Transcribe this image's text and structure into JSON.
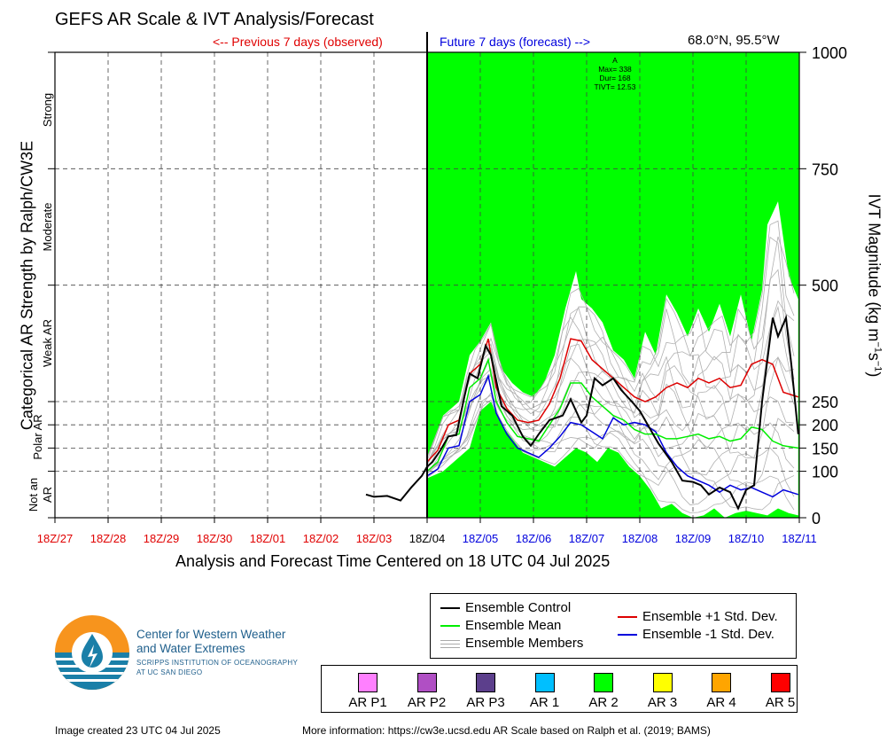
{
  "title": "GEFS AR Scale & IVT Analysis/Forecast",
  "prev_label": "<-- Previous 7 days (observed)",
  "future_label": "Future 7 days (forecast) -->",
  "location": "68.0°N, 95.5°W",
  "xlabel": "Analysis and Forecast Time Centered on 18 UTC 04 Jul 2025",
  "left_ylabel": "Categorical AR Strength by Ralph/CW3E",
  "right_ylabel": "IVT Magnitude (kg m",
  "categories": {
    "strong": "Strong",
    "moderate": "Moderate",
    "weak": "Weak AR",
    "polar": "Polar AR",
    "not_an": "Not an",
    "not_ar": "AR"
  },
  "annotation": {
    "a": "A",
    "max": "Max= 338",
    "dur": "Dur= 168",
    "tivt": "TIVT= 12.53"
  },
  "legend": {
    "control": "Ensemble Control",
    "mean": "Ensemble Mean",
    "members": "Ensemble Members",
    "plus": "Ensemble +1 Std. Dev.",
    "minus": "Ensemble -1 Std. Dev."
  },
  "ar_scale": [
    {
      "label": "AR P1",
      "color": "#ff80ff"
    },
    {
      "label": "AR P2",
      "color": "#b04fc4"
    },
    {
      "label": "AR P3",
      "color": "#5c3f8c"
    },
    {
      "label": "AR 1",
      "color": "#00bfff"
    },
    {
      "label": "AR 2",
      "color": "#00ff00"
    },
    {
      "label": "AR 3",
      "color": "#ffff00"
    },
    {
      "label": "AR 4",
      "color": "#ffa500"
    },
    {
      "label": "AR 5",
      "color": "#ff0000"
    }
  ],
  "logo": {
    "line1": "Center for Western Weather",
    "line2": "and Water Extremes",
    "line3": "SCRIPPS INSTITUTION OF OCEANOGRAPHY",
    "line4": "AT UC SAN DIEGO"
  },
  "footer_left": "Image created 23 UTC 04 Jul 2025",
  "footer_right": "More information: https://cw3e.ucsd.edu AR Scale based on Ralph et al. (2019; BAMS)",
  "colors": {
    "ar2_fill": "#00ff00",
    "control": "#000000",
    "mean": "#00ee00",
    "plus_std": "#dd0000",
    "minus_std": "#0000dd",
    "members": "#b0b0b0",
    "observed_tick": "#e00000",
    "forecast_tick": "#0000dd"
  },
  "chart_data": {
    "type": "line",
    "x_ticks": [
      "18Z/27",
      "18Z/28",
      "18Z/29",
      "18Z/30",
      "18Z/01",
      "18Z/02",
      "18Z/03",
      "18Z/04",
      "18Z/05",
      "18Z/06",
      "18Z/07",
      "18Z/08",
      "18Z/09",
      "18Z/10",
      "18Z/11"
    ],
    "x_range_days": [
      -7,
      7
    ],
    "y_ticks": [
      0,
      100,
      150,
      200,
      250,
      500,
      750,
      1000
    ],
    "ylim": [
      0,
      1000
    ],
    "ar_category_fill": {
      "from_day": 0,
      "to_day": 7,
      "category": "AR 2"
    },
    "series": [
      {
        "name": "Ensemble Control",
        "x": [
          -1.15,
          -1.0,
          -0.75,
          -0.5,
          -0.3,
          -0.1,
          0,
          0.1,
          0.25,
          0.4,
          0.55,
          0.7,
          0.8,
          0.95,
          1.1,
          1.2,
          1.4,
          1.6,
          1.8,
          1.95,
          2.1,
          2.3,
          2.55,
          2.7,
          2.9,
          3.0,
          3.15,
          3.3,
          3.5,
          3.65,
          3.85,
          4.0,
          4.15,
          4.35,
          4.6,
          4.8,
          5.0,
          5.15,
          5.3,
          5.5,
          5.7,
          5.85,
          6.0,
          6.15,
          6.3,
          6.5,
          6.6,
          6.75,
          6.85,
          6.98
        ],
        "values": [
          50,
          45,
          47,
          37,
          65,
          90,
          110,
          120,
          145,
          175,
          178,
          260,
          310,
          300,
          370,
          350,
          240,
          220,
          175,
          155,
          180,
          210,
          220,
          255,
          205,
          220,
          300,
          285,
          300,
          275,
          250,
          230,
          200,
          160,
          120,
          80,
          77,
          70,
          50,
          65,
          55,
          20,
          60,
          70,
          250,
          430,
          390,
          430,
          330,
          180
        ]
      },
      {
        "name": "Ensemble Mean",
        "x": [
          0,
          0.2,
          0.4,
          0.6,
          0.8,
          1.0,
          1.15,
          1.3,
          1.5,
          1.7,
          1.9,
          2.1,
          2.3,
          2.5,
          2.7,
          2.9,
          3.1,
          3.3,
          3.5,
          3.7,
          3.9,
          4.1,
          4.3,
          4.5,
          4.7,
          4.9,
          5.1,
          5.3,
          5.5,
          5.7,
          5.9,
          6.1,
          6.3,
          6.5,
          6.7,
          6.98
        ],
        "values": [
          100,
          120,
          175,
          180,
          280,
          300,
          340,
          250,
          205,
          175,
          170,
          165,
          200,
          235,
          290,
          290,
          260,
          240,
          220,
          210,
          190,
          180,
          180,
          170,
          170,
          175,
          180,
          170,
          175,
          165,
          170,
          195,
          190,
          165,
          155,
          150
        ]
      },
      {
        "name": "Ensemble +1 Std. Dev.",
        "x": [
          0,
          0.2,
          0.4,
          0.6,
          0.8,
          1.0,
          1.15,
          1.3,
          1.5,
          1.7,
          1.9,
          2.1,
          2.3,
          2.5,
          2.7,
          2.9,
          3.1,
          3.3,
          3.5,
          3.7,
          3.9,
          4.1,
          4.3,
          4.5,
          4.7,
          4.9,
          5.1,
          5.3,
          5.5,
          5.7,
          5.9,
          6.1,
          6.3,
          6.5,
          6.7,
          6.98
        ],
        "values": [
          120,
          145,
          200,
          210,
          310,
          330,
          385,
          280,
          235,
          210,
          205,
          210,
          245,
          300,
          385,
          380,
          340,
          320,
          300,
          280,
          260,
          250,
          260,
          280,
          290,
          280,
          300,
          290,
          300,
          280,
          285,
          330,
          340,
          330,
          270,
          260
        ]
      },
      {
        "name": "Ensemble -1 Std. Dev.",
        "x": [
          0,
          0.2,
          0.4,
          0.6,
          0.8,
          1.0,
          1.15,
          1.3,
          1.5,
          1.7,
          1.9,
          2.1,
          2.3,
          2.5,
          2.7,
          2.9,
          3.1,
          3.3,
          3.5,
          3.7,
          3.9,
          4.1,
          4.3,
          4.5,
          4.7,
          4.9,
          5.1,
          5.3,
          5.5,
          5.7,
          5.9,
          6.1,
          6.3,
          6.5,
          6.7,
          6.98
        ],
        "values": [
          90,
          105,
          150,
          155,
          250,
          265,
          305,
          225,
          180,
          150,
          140,
          130,
          150,
          175,
          205,
          200,
          185,
          170,
          215,
          200,
          205,
          200,
          185,
          140,
          110,
          90,
          80,
          70,
          55,
          70,
          60,
          65,
          55,
          45,
          60,
          50
        ]
      },
      {
        "name": "Ensemble Members (upper envelope)",
        "x": [
          0,
          0.3,
          0.6,
          0.8,
          1.0,
          1.2,
          1.4,
          1.6,
          1.8,
          2.0,
          2.2,
          2.4,
          2.6,
          2.8,
          2.9,
          3.1,
          3.3,
          3.5,
          3.7,
          3.9,
          4.1,
          4.3,
          4.5,
          4.7,
          4.9,
          5.1,
          5.3,
          5.5,
          5.7,
          5.9,
          6.1,
          6.3,
          6.4,
          6.6,
          6.8,
          6.98
        ],
        "values": [
          130,
          220,
          250,
          350,
          380,
          420,
          320,
          290,
          270,
          260,
          290,
          350,
          450,
          530,
          470,
          450,
          420,
          360,
          340,
          300,
          400,
          350,
          480,
          440,
          390,
          450,
          400,
          460,
          390,
          480,
          380,
          490,
          630,
          680,
          520,
          470
        ]
      },
      {
        "name": "Ensemble Members (lower envelope)",
        "x": [
          0,
          0.3,
          0.6,
          0.8,
          1.0,
          1.2,
          1.4,
          1.6,
          1.8,
          2.0,
          2.2,
          2.4,
          2.6,
          2.8,
          3.0,
          3.2,
          3.4,
          3.6,
          3.8,
          4.0,
          4.2,
          4.4,
          4.6,
          4.8,
          5.0,
          5.2,
          5.4,
          5.6,
          5.8,
          6.0,
          6.2,
          6.4,
          6.6,
          6.8,
          6.98
        ],
        "values": [
          85,
          100,
          130,
          150,
          230,
          250,
          200,
          170,
          140,
          130,
          120,
          110,
          130,
          150,
          140,
          120,
          150,
          140,
          110,
          90,
          60,
          20,
          30,
          10,
          0,
          5,
          20,
          0,
          10,
          15,
          10,
          5,
          20,
          10,
          5
        ]
      }
    ]
  }
}
